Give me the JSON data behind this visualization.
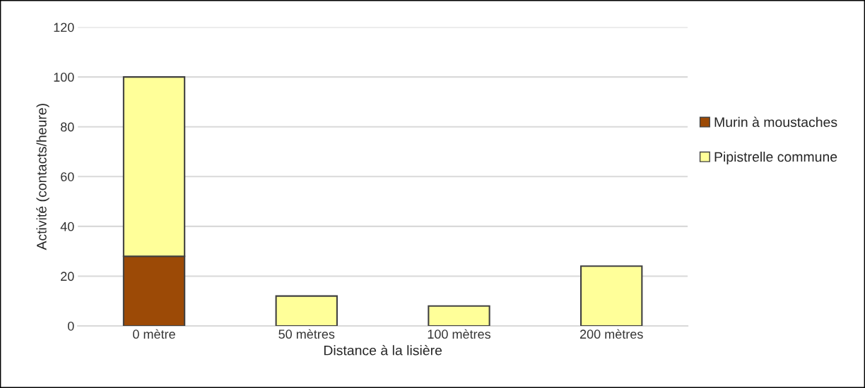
{
  "chart_data": {
    "type": "bar",
    "stacked": true,
    "xlabel": "Distance à la lisière",
    "ylabel": "Activité (contacts/heure)",
    "categories": [
      "0 mètre",
      "50 mètres",
      "100 mètres",
      "200 mètres"
    ],
    "series": [
      {
        "name": "Murin à moustaches",
        "color": "#9c4a06",
        "values": [
          28,
          0,
          0,
          0
        ]
      },
      {
        "name": "Pipistrelle commune",
        "color": "#ffff99",
        "values": [
          72,
          12,
          8,
          24
        ]
      }
    ],
    "ylim": [
      0,
      120
    ],
    "yticks": [
      0,
      20,
      40,
      60,
      80,
      100,
      120
    ],
    "grid": "y",
    "legend": "right"
  }
}
